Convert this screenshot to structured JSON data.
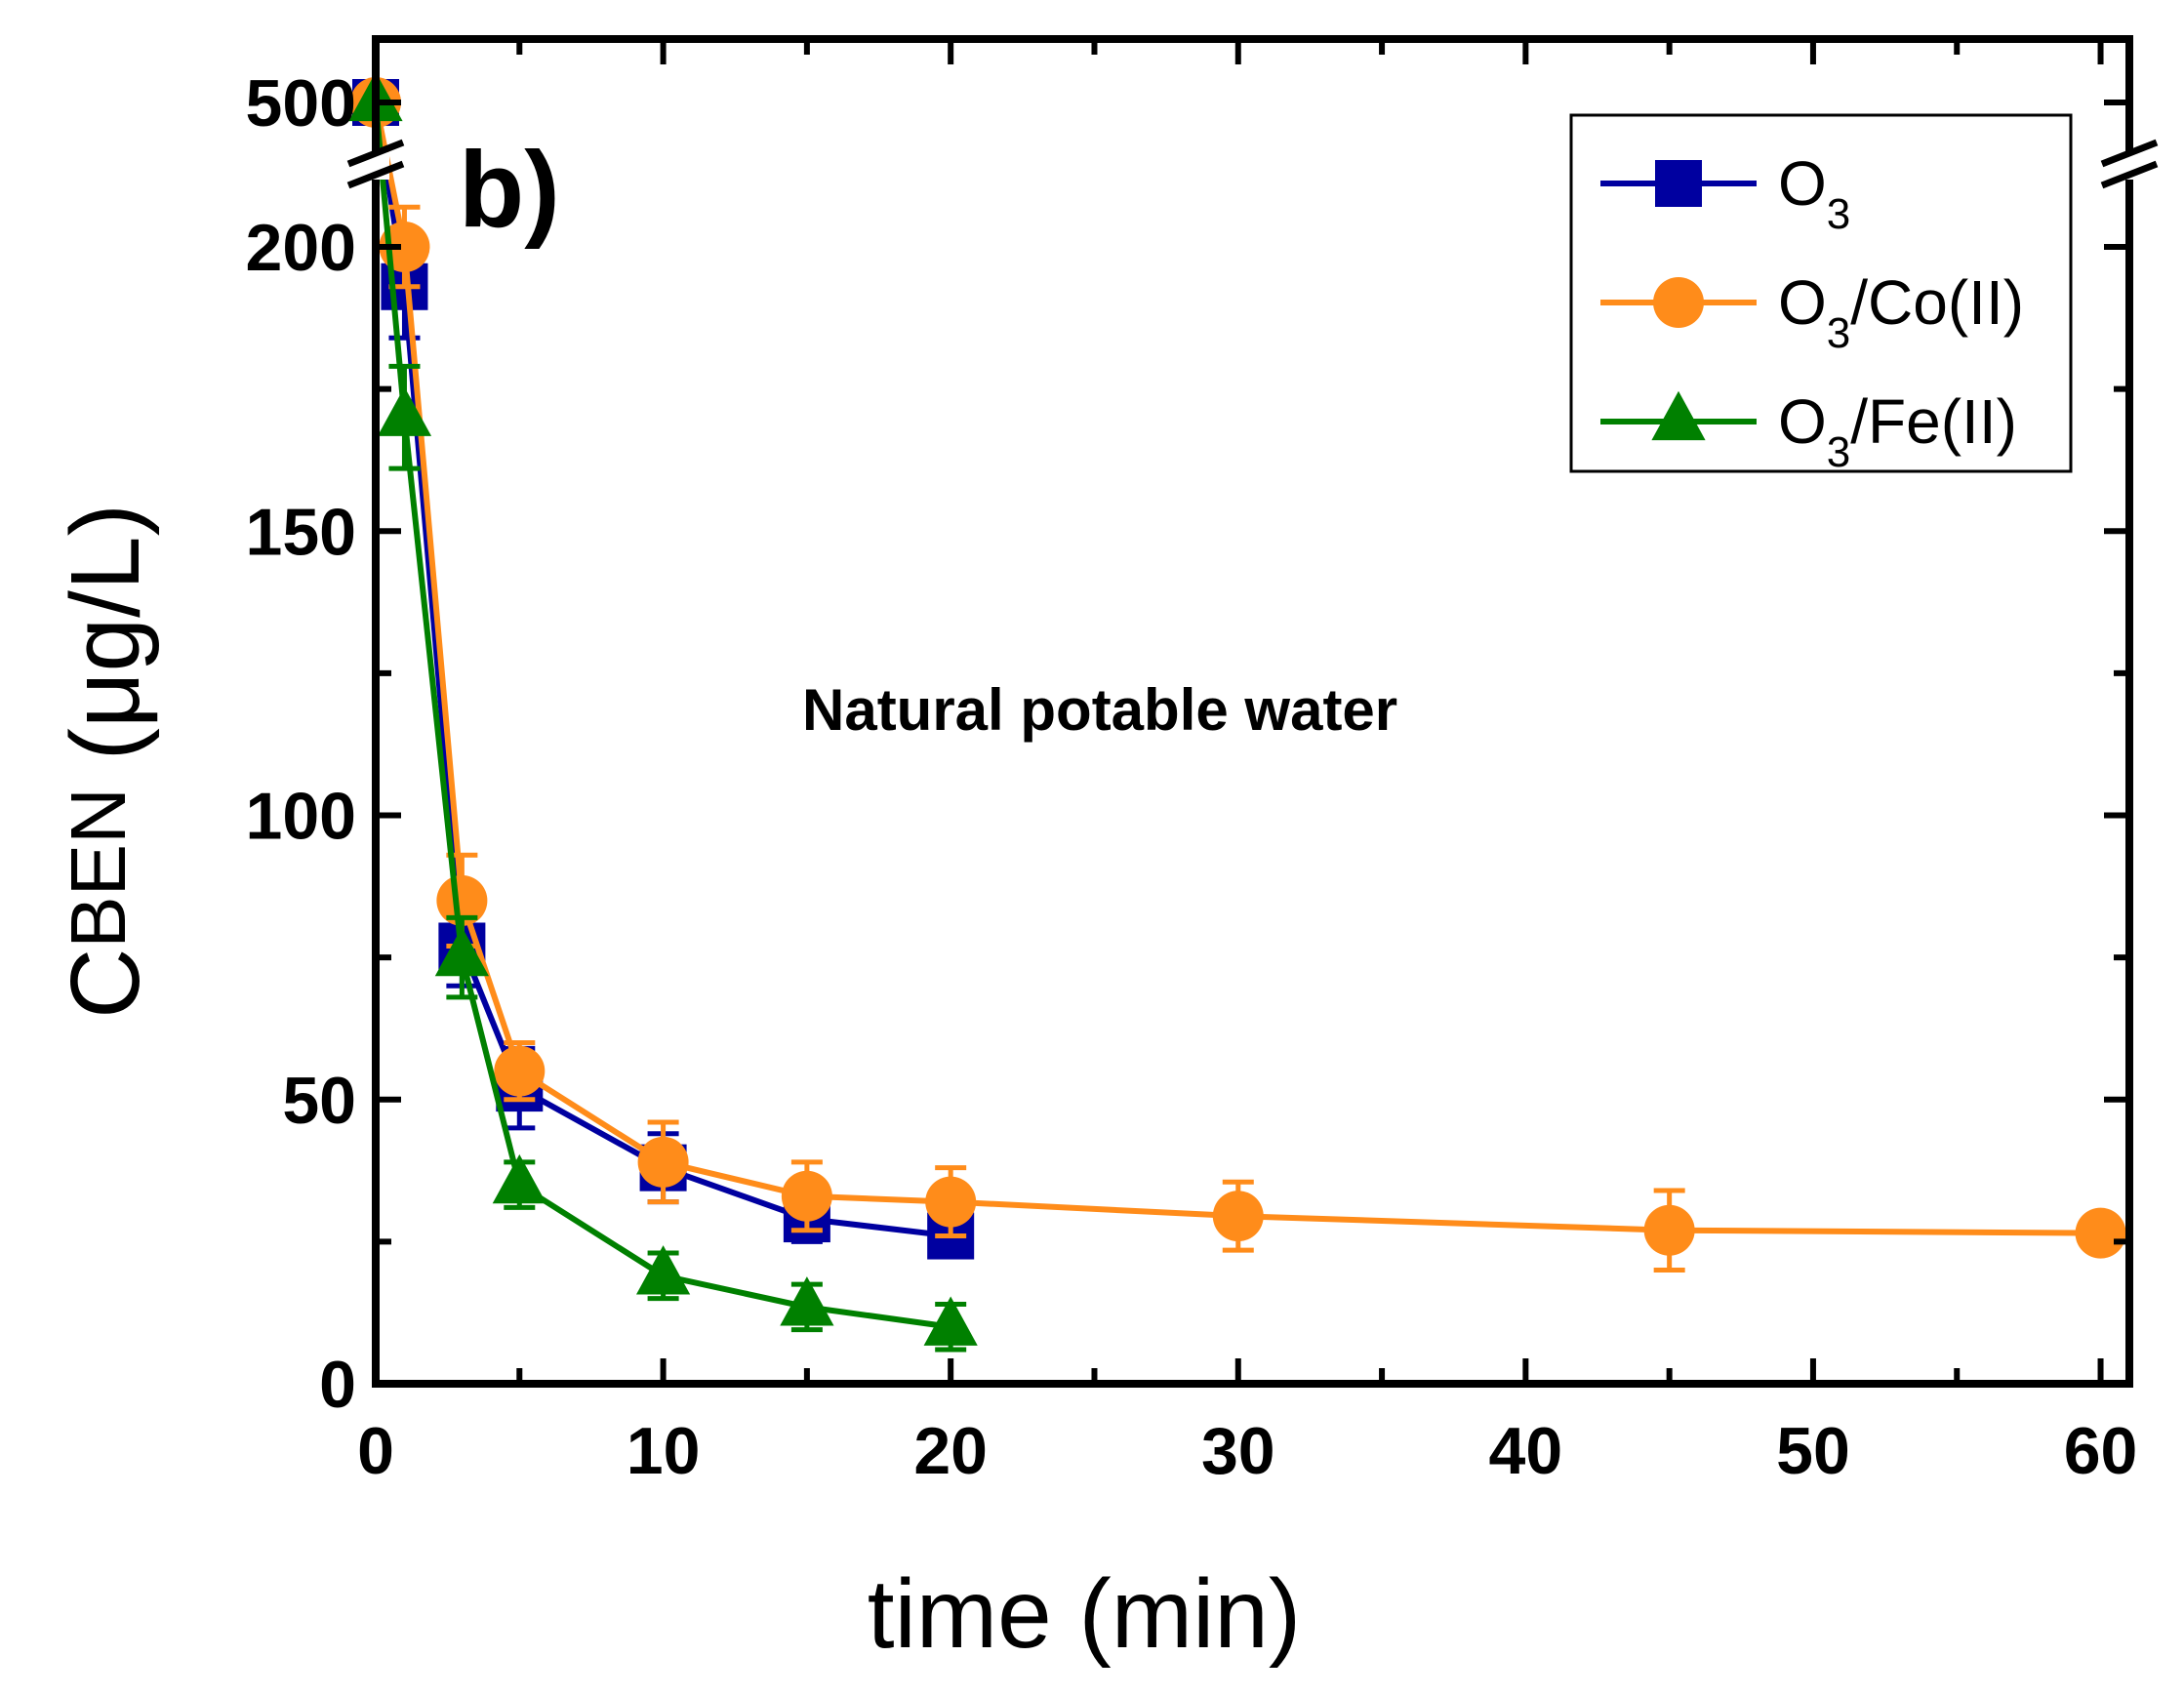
{
  "chart_data": {
    "type": "line",
    "title": "",
    "panel_label": "b)",
    "annotation": "Natural potable water",
    "xlabel": "time (min)",
    "ylabel": {
      "main": "C",
      "sub": "BEN",
      "unit": " (μg/L)"
    },
    "xlim": [
      0,
      61
    ],
    "ylim": [
      0,
      230
    ],
    "y_axis_break": {
      "below": 210,
      "above_label": "500",
      "above_value": 500
    },
    "xticks": [
      0,
      10,
      20,
      30,
      40,
      50,
      60
    ],
    "yticks": [
      0,
      50,
      100,
      150,
      200
    ],
    "legend_position": "top-right",
    "grid": false,
    "series": [
      {
        "name": {
          "main": "O",
          "sub": "3",
          "rest": ""
        },
        "color": "#0000a0",
        "marker": "square",
        "x": [
          0,
          1,
          3,
          5,
          10,
          15,
          20
        ],
        "y": [
          500,
          193,
          77,
          52,
          38,
          29,
          26
        ],
        "err": [
          0,
          9,
          7,
          7,
          6,
          4,
          3
        ]
      },
      {
        "name": {
          "main": "O",
          "sub": "3",
          "rest": "/Co(II)"
        },
        "color": "#ff8c1a",
        "marker": "circle",
        "x": [
          0,
          1,
          3,
          5,
          10,
          15,
          20,
          30,
          45,
          60
        ],
        "y": [
          500,
          200,
          85,
          55,
          39,
          33,
          32,
          29.5,
          27,
          26.5
        ],
        "err": [
          0,
          7,
          8,
          5,
          7,
          6,
          6,
          6,
          7,
          2
        ]
      },
      {
        "name": {
          "main": "O",
          "sub": "3",
          "rest": "/Fe(II)"
        },
        "color": "#008000",
        "marker": "triangle",
        "x": [
          0,
          1,
          3,
          5,
          10,
          15,
          20
        ],
        "y": [
          500,
          170,
          75,
          35,
          19,
          13.5,
          10
        ],
        "err": [
          0,
          9,
          7,
          4,
          4,
          4,
          4
        ]
      }
    ]
  }
}
